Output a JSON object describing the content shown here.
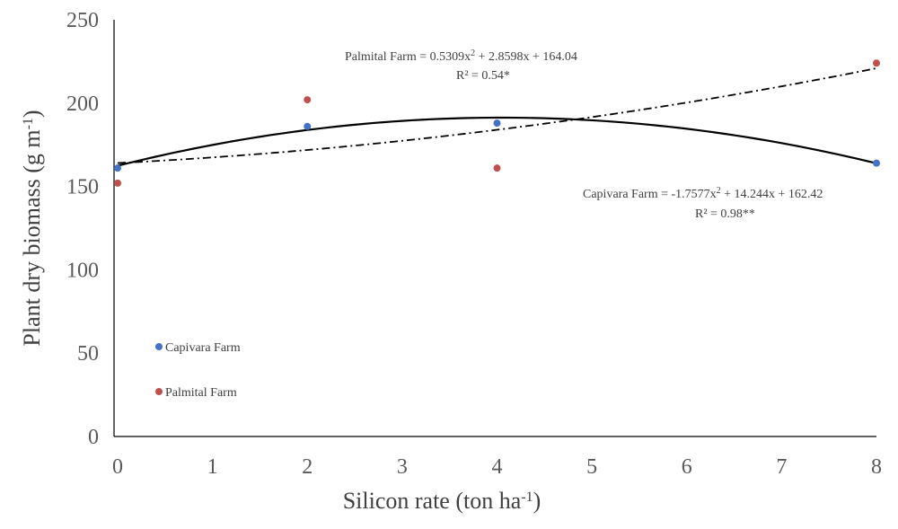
{
  "chart_data": {
    "type": "scatter",
    "title": "",
    "xlabel": {
      "main": "Silicon rate (ton ha",
      "sup": "-1",
      "tail": ")"
    },
    "ylabel": {
      "main": "Plant dry biomass (g m",
      "sup": "-1",
      "tail": ")"
    },
    "xlim": [
      0,
      8
    ],
    "ylim": [
      0,
      250
    ],
    "x_ticks": [
      "0",
      "1",
      "2",
      "3",
      "4",
      "5",
      "6",
      "7",
      "8"
    ],
    "y_ticks": [
      "0",
      "50",
      "100",
      "150",
      "200",
      "250"
    ],
    "grid": false,
    "legend_position": "left",
    "series": [
      {
        "name": "Capivara Farm",
        "color": "#4472C4",
        "points": [
          {
            "x": 0,
            "y": 161
          },
          {
            "x": 2,
            "y": 186
          },
          {
            "x": 4,
            "y": 188
          },
          {
            "x": 8,
            "y": 164
          }
        ],
        "trendline": {
          "type": "polynomial",
          "coefficients": [
            -1.7577,
            14.244,
            162.42
          ],
          "style": "solid"
        },
        "equation": {
          "prefix": "Capivara Farm = -1.7577x",
          "sup": "2",
          "suffix": " + 14.244x  + 162.42"
        },
        "r2": "R² = 0.98**"
      },
      {
        "name": "Palmital Farm",
        "color": "#C0504D",
        "points": [
          {
            "x": 0,
            "y": 152
          },
          {
            "x": 2,
            "y": 202
          },
          {
            "x": 4,
            "y": 161
          },
          {
            "x": 8,
            "y": 224
          }
        ],
        "trendline": {
          "type": "polynomial",
          "coefficients": [
            0.5309,
            2.8598,
            164.04
          ],
          "style": "dash-dot"
        },
        "equation": {
          "prefix": "Palmital  Farm = 0.5309x",
          "sup": "2",
          "suffix": " + 2.8598x  + 164.04"
        },
        "r2": "R² = 0.54*"
      }
    ]
  }
}
